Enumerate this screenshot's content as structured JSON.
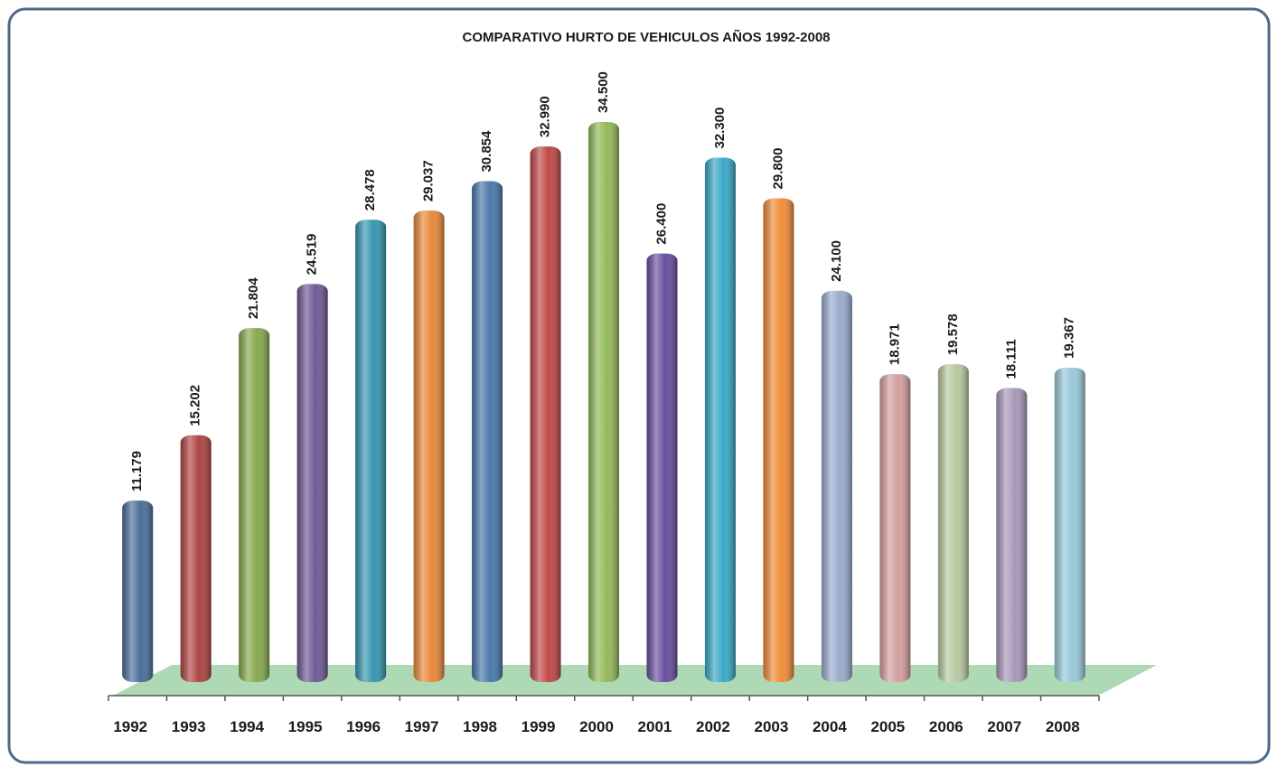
{
  "chart_data": {
    "type": "bar",
    "title": "COMPARATIVO HURTO DE VEHICULOS AÑOS 1992-2008",
    "categories": [
      "1992",
      "1993",
      "1994",
      "1995",
      "1996",
      "1997",
      "1998",
      "1999",
      "2000",
      "2001",
      "2002",
      "2003",
      "2004",
      "2005",
      "2006",
      "2007",
      "2008"
    ],
    "values": [
      11179,
      15202,
      21804,
      24519,
      28478,
      29037,
      30854,
      32990,
      34500,
      26400,
      32300,
      29800,
      24100,
      18971,
      19578,
      18111,
      19367
    ],
    "value_labels": [
      "11.179",
      "15.202",
      "21.804",
      "24.519",
      "28.478",
      "29.037",
      "30.854",
      "32.990",
      "34.500",
      "26.400",
      "32.300",
      "29.800",
      "24.100",
      "18.971",
      "19.578",
      "18.111",
      "19.367"
    ],
    "colors": [
      "#4a6f9a",
      "#b04545",
      "#86a850",
      "#6f5a94",
      "#3596b0",
      "#e8893a",
      "#4a78aa",
      "#c04848",
      "#92b85a",
      "#6a4fa0",
      "#3aa8c8",
      "#f08c3a",
      "#9aaccc",
      "#d4a0a0",
      "#b8c8a0",
      "#a898b8",
      "#98c8d8"
    ]
  }
}
